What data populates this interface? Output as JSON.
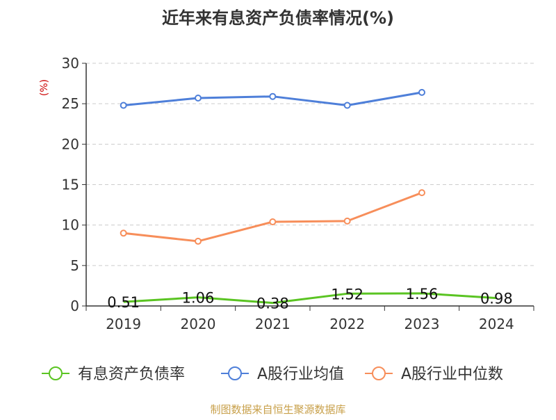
{
  "chart_data": {
    "type": "line",
    "title": "近年来有息资产负债率情况(%)",
    "ylabel": "(%)",
    "xlabel": "",
    "ylim": [
      0,
      30
    ],
    "yticks": [
      "0",
      "5",
      "10",
      "15",
      "20",
      "25",
      "30"
    ],
    "categories": [
      "2019",
      "2020",
      "2021",
      "2022",
      "2023",
      "2024"
    ],
    "grid": true,
    "legend_position": "bottom",
    "series": [
      {
        "name": "有息资产负债率",
        "color": "#5ac422",
        "values": [
          0.51,
          1.06,
          0.38,
          1.52,
          1.56,
          0.98
        ],
        "labels": [
          "0.51",
          "1.06",
          "0.38",
          "1.52",
          "1.56",
          "0.98"
        ],
        "show_labels": true,
        "show_markers": false
      },
      {
        "name": "A股行业均值",
        "color": "#4e7fd9",
        "values": [
          24.8,
          25.7,
          25.9,
          24.8,
          26.4,
          null
        ],
        "show_labels": false,
        "show_markers": true
      },
      {
        "name": "A股行业中位数",
        "color": "#f78e5a",
        "values": [
          9.0,
          8.0,
          10.4,
          10.5,
          14.0,
          null
        ],
        "show_labels": false,
        "show_markers": true
      }
    ],
    "source": "制图数据来自恒生聚源数据库",
    "colors": {
      "ylabel": "#cc0000",
      "source": "#c8a04a",
      "axis": "#333333",
      "grid": "#cccccc"
    }
  }
}
